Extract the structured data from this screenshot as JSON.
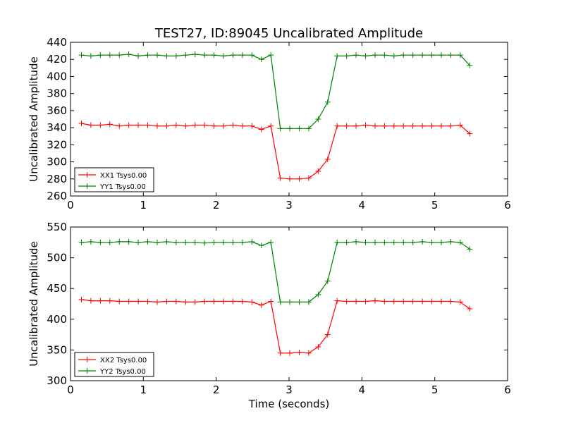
{
  "chart_data": [
    {
      "type": "line",
      "title": "TEST27, ID:89045 Uncalibrated Amplitude",
      "xlabel": "",
      "ylabel": "Uncalibrated Amplitude",
      "xlim": [
        0,
        6
      ],
      "ylim": [
        260,
        440
      ],
      "xticks": [
        "0",
        "1",
        "2",
        "3",
        "4",
        "5",
        "6"
      ],
      "yticks": [
        "260",
        "280",
        "300",
        "320",
        "340",
        "360",
        "380",
        "400",
        "420",
        "440"
      ],
      "legend_position": "lower-left",
      "x": [
        0.15,
        0.28,
        0.41,
        0.54,
        0.67,
        0.8,
        0.93,
        1.06,
        1.19,
        1.32,
        1.45,
        1.58,
        1.71,
        1.84,
        1.97,
        2.1,
        2.23,
        2.36,
        2.49,
        2.62,
        2.75,
        2.88,
        3.01,
        3.14,
        3.27,
        3.4,
        3.53,
        3.66,
        3.79,
        3.92,
        4.05,
        4.18,
        4.31,
        4.44,
        4.57,
        4.7,
        4.83,
        4.96,
        5.09,
        5.22,
        5.35,
        5.48
      ],
      "series": [
        {
          "name": "XX1 Tsys0.00",
          "color": "#ff0000",
          "values": [
            345,
            343,
            343,
            344,
            342,
            343,
            343,
            343,
            342,
            342,
            343,
            342,
            343,
            343,
            342,
            342,
            343,
            342,
            342,
            338,
            342,
            281,
            280,
            280,
            281,
            289,
            303,
            342,
            342,
            342,
            343,
            342,
            342,
            342,
            342,
            342,
            342,
            342,
            342,
            342,
            343,
            333
          ]
        },
        {
          "name": "YY1 Tsys0.00",
          "color": "#008000",
          "values": [
            425,
            424,
            425,
            425,
            425,
            426,
            424,
            425,
            425,
            424,
            424,
            425,
            426,
            425,
            425,
            424,
            425,
            425,
            425,
            420,
            425,
            339,
            339,
            339,
            339,
            350,
            370,
            424,
            424,
            425,
            424,
            425,
            425,
            424,
            425,
            425,
            425,
            425,
            425,
            425,
            425,
            413
          ]
        }
      ]
    },
    {
      "type": "line",
      "title": "",
      "xlabel": "Time (seconds)",
      "ylabel": "Uncalibrated Amplitude",
      "xlim": [
        0,
        6
      ],
      "ylim": [
        300,
        550
      ],
      "xticks": [
        "0",
        "1",
        "2",
        "3",
        "4",
        "5",
        "6"
      ],
      "yticks": [
        "300",
        "350",
        "400",
        "450",
        "500",
        "550"
      ],
      "legend_position": "lower-left",
      "x": [
        0.15,
        0.28,
        0.41,
        0.54,
        0.67,
        0.8,
        0.93,
        1.06,
        1.19,
        1.32,
        1.45,
        1.58,
        1.71,
        1.84,
        1.97,
        2.1,
        2.23,
        2.36,
        2.49,
        2.62,
        2.75,
        2.88,
        3.01,
        3.14,
        3.27,
        3.4,
        3.53,
        3.66,
        3.79,
        3.92,
        4.05,
        4.18,
        4.31,
        4.44,
        4.57,
        4.7,
        4.83,
        4.96,
        5.09,
        5.22,
        5.35,
        5.48
      ],
      "series": [
        {
          "name": "XX2 Tsys0.00",
          "color": "#ff0000",
          "values": [
            432,
            430,
            430,
            430,
            429,
            429,
            429,
            429,
            428,
            429,
            429,
            428,
            428,
            429,
            429,
            429,
            429,
            429,
            428,
            423,
            429,
            345,
            345,
            346,
            345,
            355,
            375,
            430,
            429,
            429,
            429,
            430,
            429,
            429,
            429,
            429,
            429,
            429,
            429,
            429,
            428,
            417
          ]
        },
        {
          "name": "YY2 Tsys0.00",
          "color": "#008000",
          "values": [
            525,
            526,
            525,
            525,
            526,
            526,
            525,
            526,
            525,
            526,
            525,
            525,
            525,
            524,
            525,
            525,
            525,
            525,
            526,
            520,
            525,
            428,
            428,
            428,
            428,
            440,
            462,
            525,
            525,
            526,
            525,
            525,
            525,
            525,
            525,
            525,
            526,
            525,
            525,
            526,
            525,
            514
          ]
        }
      ]
    }
  ]
}
